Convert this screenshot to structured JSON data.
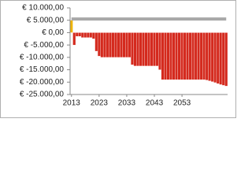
{
  "chart_data": {
    "type": "bar",
    "categories": [
      "2013",
      null,
      null,
      null,
      null,
      null,
      null,
      null,
      null,
      null,
      "2023",
      null,
      null,
      null,
      null,
      null,
      null,
      null,
      null,
      null,
      "2033",
      null,
      null,
      null,
      null,
      null,
      null,
      null,
      null,
      null,
      "2043",
      null,
      null,
      null,
      null,
      null,
      null,
      null,
      null,
      null,
      "2053",
      null,
      null,
      null,
      null,
      null,
      null,
      null,
      null,
      null,
      null,
      null,
      null,
      null,
      null,
      null,
      null
    ],
    "series": [
      {
        "type": "bar",
        "color": "#f0b400",
        "values": [
          5000,
          null,
          null,
          null,
          null,
          null,
          null,
          null,
          null,
          null,
          null,
          null,
          null,
          null,
          null,
          null,
          null,
          null,
          null,
          null,
          null,
          null,
          null,
          null,
          null,
          null,
          null,
          null,
          null,
          null,
          null,
          null,
          null,
          null,
          null,
          null,
          null,
          null,
          null,
          null,
          null,
          null,
          null,
          null,
          null,
          null,
          null,
          null,
          null,
          null,
          null,
          null,
          null,
          null,
          null,
          null,
          null
        ]
      },
      {
        "type": "bar",
        "color": "#d42a1e",
        "values": [
          null,
          -5000,
          -1500,
          -1500,
          -2000,
          -2000,
          -2000,
          -2000,
          -2500,
          -7500,
          -9500,
          -10000,
          -10000,
          -10000,
          -10000,
          -10000,
          -10000,
          -10000,
          -10000,
          -10000,
          -10000,
          -10000,
          -13000,
          -13500,
          -13500,
          -13500,
          -13500,
          -13500,
          -13500,
          -13500,
          -13500,
          -13500,
          -15000,
          -19000,
          -19000,
          -19000,
          -19000,
          -19000,
          -19000,
          -19000,
          -19000,
          -19000,
          -19000,
          -19000,
          -19000,
          -19000,
          -19000,
          -19000,
          -19000,
          -19200,
          -19500,
          -19800,
          -20200,
          -20600,
          -21000,
          -21300,
          -21600
        ]
      },
      {
        "type": "line",
        "color": "#a8a8a8",
        "values": [
          5500,
          5500,
          5500,
          5500,
          5500,
          5500,
          5500,
          5500,
          5500,
          5500,
          5500,
          5500,
          5500,
          5500,
          5500,
          5500,
          5500,
          5500,
          5500,
          5500,
          5500,
          5500,
          5500,
          5500,
          5500,
          5500,
          5500,
          5500,
          5500,
          5500,
          5500,
          5500,
          5500,
          5500,
          5500,
          5500,
          5500,
          5500,
          5500,
          5500,
          5500,
          5500,
          5500,
          5500,
          5500,
          5500,
          5500,
          5500,
          5500,
          5500,
          5500,
          5500,
          5500,
          5500,
          5500,
          5500,
          5500
        ]
      }
    ],
    "ylim": [
      -25000,
      10000
    ],
    "yticks": [
      {
        "value": 10000,
        "label": "€ 10.000,00"
      },
      {
        "value": 5000,
        "label": "€ 5.000,00"
      },
      {
        "value": 0,
        "label": "€ 0,00"
      },
      {
        "value": -5000,
        "label": "€ -5.000,00"
      },
      {
        "value": -10000,
        "label": "€ -10.000,00"
      },
      {
        "value": -15000,
        "label": "€ -15.000,00"
      },
      {
        "value": -20000,
        "label": "€ -20.000,00"
      },
      {
        "value": -25000,
        "label": "€ -25.000,00"
      }
    ],
    "grid": false
  }
}
